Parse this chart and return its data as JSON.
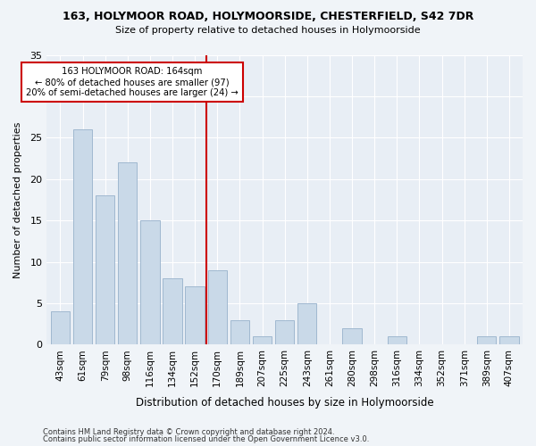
{
  "title": "163, HOLYMOOR ROAD, HOLYMOORSIDE, CHESTERFIELD, S42 7DR",
  "subtitle": "Size of property relative to detached houses in Holymoorside",
  "xlabel": "Distribution of detached houses by size in Holymoorside",
  "ylabel": "Number of detached properties",
  "categories": [
    "43sqm",
    "61sqm",
    "79sqm",
    "98sqm",
    "116sqm",
    "134sqm",
    "152sqm",
    "170sqm",
    "189sqm",
    "207sqm",
    "225sqm",
    "243sqm",
    "261sqm",
    "280sqm",
    "298sqm",
    "316sqm",
    "334sqm",
    "352sqm",
    "371sqm",
    "389sqm",
    "407sqm"
  ],
  "values": [
    4,
    26,
    18,
    22,
    15,
    8,
    7,
    9,
    3,
    1,
    3,
    5,
    0,
    2,
    0,
    1,
    0,
    0,
    0,
    1,
    1
  ],
  "bar_color": "#c9d9e8",
  "bar_edge_color": "#a0b8d0",
  "vline_color": "#cc0000",
  "annotation_text": "163 HOLYMOOR ROAD: 164sqm\n← 80% of detached houses are smaller (97)\n20% of semi-detached houses are larger (24) →",
  "annotation_box_color": "#ffffff",
  "annotation_box_edge": "#cc0000",
  "ylim": [
    0,
    35
  ],
  "yticks": [
    0,
    5,
    10,
    15,
    20,
    25,
    30,
    35
  ],
  "background_color": "#e8eef5",
  "fig_background": "#f0f4f8",
  "footer1": "Contains HM Land Registry data © Crown copyright and database right 2024.",
  "footer2": "Contains public sector information licensed under the Open Government Licence v3.0."
}
